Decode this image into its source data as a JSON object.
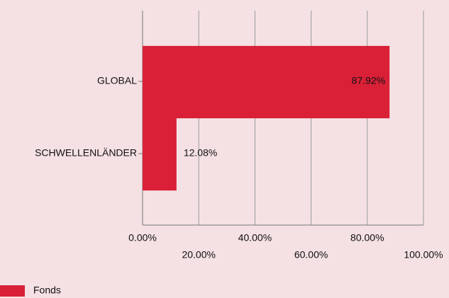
{
  "chart_data": {
    "type": "bar",
    "orientation": "horizontal",
    "categories": [
      "GLOBAL",
      "SCHWELLENLÄNDER"
    ],
    "series": [
      {
        "name": "Fonds",
        "color": "#d92037",
        "values": [
          87.92,
          12.08
        ],
        "value_labels": [
          "87.92%",
          "12.08%"
        ]
      }
    ],
    "xlim": [
      0,
      100
    ],
    "xticks": [
      {
        "value": 0,
        "label": "0.00%"
      },
      {
        "value": 20,
        "label": "20.00%"
      },
      {
        "value": 40,
        "label": "40.00%"
      },
      {
        "value": 60,
        "label": "60.00%"
      },
      {
        "value": 80,
        "label": "80.00%"
      },
      {
        "value": 100,
        "label": "100.00%"
      }
    ],
    "grid": true,
    "legend": "bottom-left"
  }
}
